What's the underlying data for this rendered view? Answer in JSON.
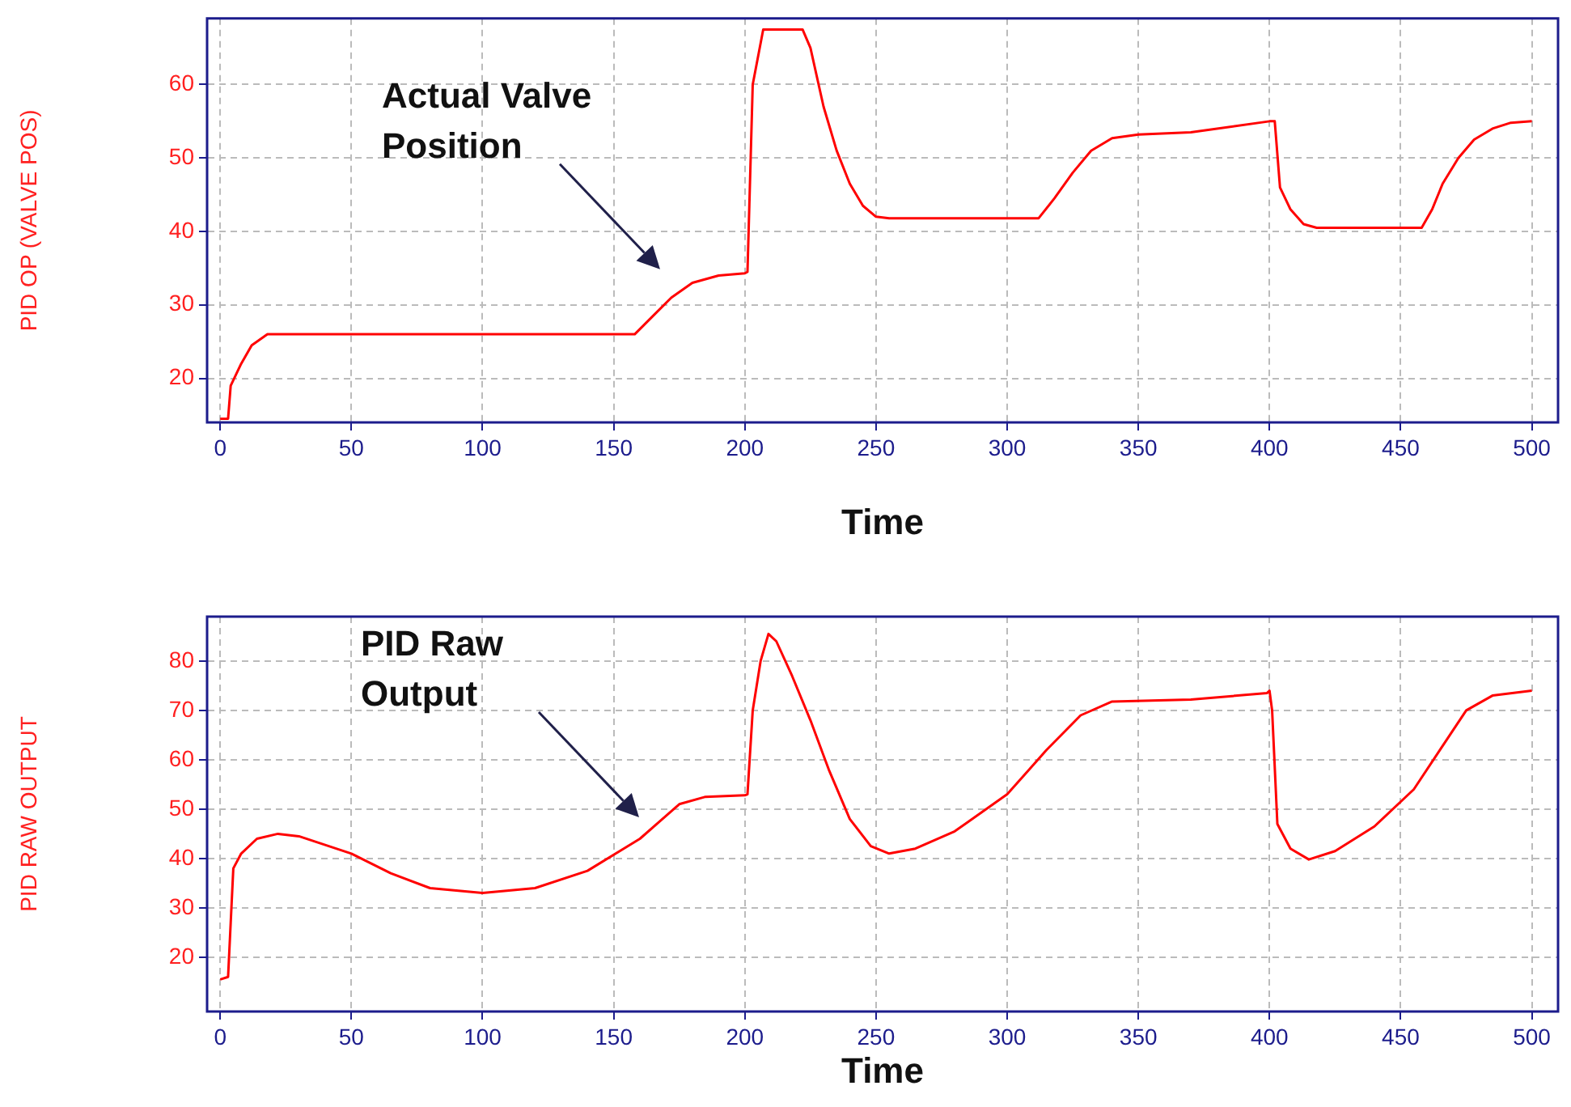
{
  "chart_data": [
    {
      "type": "line",
      "xlabel": "Time",
      "ylabel": "PID OP (VALVE POS)",
      "xlim": [
        -5,
        510
      ],
      "ylim": [
        14,
        69
      ],
      "xticks": [
        0,
        50,
        100,
        150,
        200,
        250,
        300,
        350,
        400,
        450,
        500
      ],
      "yticks": [
        20,
        30,
        40,
        50,
        60
      ],
      "grid": true,
      "marker": "none",
      "annotations": [
        "Actual Valve Position"
      ],
      "series": [
        {
          "color": "#ff0000",
          "x": [
            0,
            3,
            4,
            8,
            12,
            18,
            158,
            165,
            172,
            180,
            190,
            200,
            201,
            203,
            207,
            222,
            225,
            230,
            235,
            240,
            245,
            250,
            255,
            312,
            318,
            325,
            332,
            340,
            350,
            370,
            400,
            402,
            404,
            408,
            413,
            418,
            458,
            462,
            466,
            472,
            478,
            485,
            492,
            500
          ],
          "values": [
            14.5,
            14.5,
            19,
            22,
            24.5,
            26,
            26,
            28.5,
            31,
            33,
            34,
            34.3,
            34.5,
            60,
            67.5,
            67.5,
            65,
            57,
            51,
            46.5,
            43.5,
            42,
            41.8,
            41.8,
            44.5,
            48,
            51,
            52.7,
            53.2,
            53.5,
            55,
            55,
            46,
            43,
            41,
            40.5,
            40.5,
            43,
            46.5,
            50,
            52.5,
            54,
            54.8,
            55
          ]
        }
      ]
    },
    {
      "type": "line",
      "xlabel": "Time",
      "ylabel": "PID RAW OUTPUT",
      "xlim": [
        -5,
        510
      ],
      "ylim": [
        9,
        89
      ],
      "xticks": [
        0,
        50,
        100,
        150,
        200,
        250,
        300,
        350,
        400,
        450,
        500
      ],
      "yticks": [
        20,
        30,
        40,
        50,
        60,
        70,
        80
      ],
      "grid": true,
      "marker": "none",
      "annotations": [
        "PID Raw Output"
      ],
      "series": [
        {
          "color": "#ff0000",
          "x": [
            0,
            3,
            4,
            5,
            8,
            14,
            22,
            30,
            50,
            65,
            80,
            100,
            120,
            140,
            160,
            175,
            185,
            200,
            201,
            203,
            206,
            209,
            212,
            218,
            225,
            232,
            240,
            248,
            255,
            265,
            280,
            300,
            315,
            328,
            340,
            370,
            399,
            400,
            401,
            403,
            408,
            415,
            425,
            440,
            455,
            465,
            475,
            485,
            500
          ],
          "values": [
            15.5,
            16,
            27,
            38,
            41,
            44,
            45,
            44.5,
            41,
            37,
            34,
            33,
            34,
            37.5,
            44,
            51,
            52.5,
            52.8,
            53,
            70,
            80,
            85.5,
            84,
            77,
            68,
            58,
            48,
            42.5,
            41,
            42,
            45.5,
            53,
            62,
            69,
            71.8,
            72.2,
            73.5,
            74,
            70,
            47,
            42,
            39.8,
            41.5,
            46.5,
            54,
            62,
            70,
            73,
            74
          ]
        }
      ]
    }
  ]
}
